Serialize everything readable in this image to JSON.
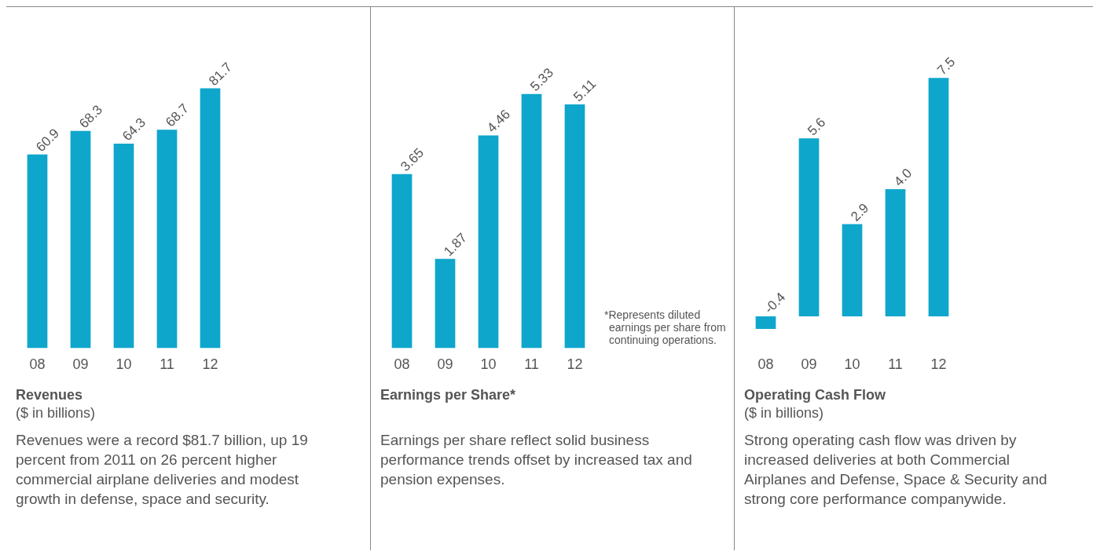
{
  "chart_data": [
    {
      "type": "bar",
      "title": "Revenues",
      "subtitle": "($ in billions)",
      "categories": [
        "08",
        "09",
        "10",
        "11",
        "12"
      ],
      "values": [
        60.9,
        68.3,
        64.3,
        68.7,
        81.7
      ],
      "color": "#0fa6cc",
      "data_labels": true,
      "annotations": [
        "Revenues were a record $81.7 billion, up 19 percent from 2011 on 26 percent higher commercial airplane deliveries and modest growth in defense, space and security."
      ]
    },
    {
      "type": "bar",
      "title": "Earnings per Share*",
      "categories": [
        "08",
        "09",
        "10",
        "11",
        "12"
      ],
      "values": [
        3.65,
        1.87,
        4.46,
        5.33,
        5.11
      ],
      "color": "#0fa6cc",
      "data_labels": true,
      "annotations": [
        "*Represents diluted earnings per share from continuing operations.",
        "Earnings per share reflect solid business performance trends offset by increased tax and pension expenses."
      ]
    },
    {
      "type": "bar",
      "title": "Operating Cash Flow",
      "subtitle": "($ in billions)",
      "categories": [
        "08",
        "09",
        "10",
        "11",
        "12"
      ],
      "values": [
        -0.4,
        5.6,
        2.9,
        4.0,
        7.5
      ],
      "value_labels": [
        "-0.4",
        "5.6",
        "2.9",
        "4.0",
        "7.5"
      ],
      "color": "#0fa6cc",
      "annotations": [
        "Strong operating cash flow was driven by increased deliveries at both Commercial Airplanes and Defense, Space & Security and strong core performance companywide."
      ]
    }
  ]
}
